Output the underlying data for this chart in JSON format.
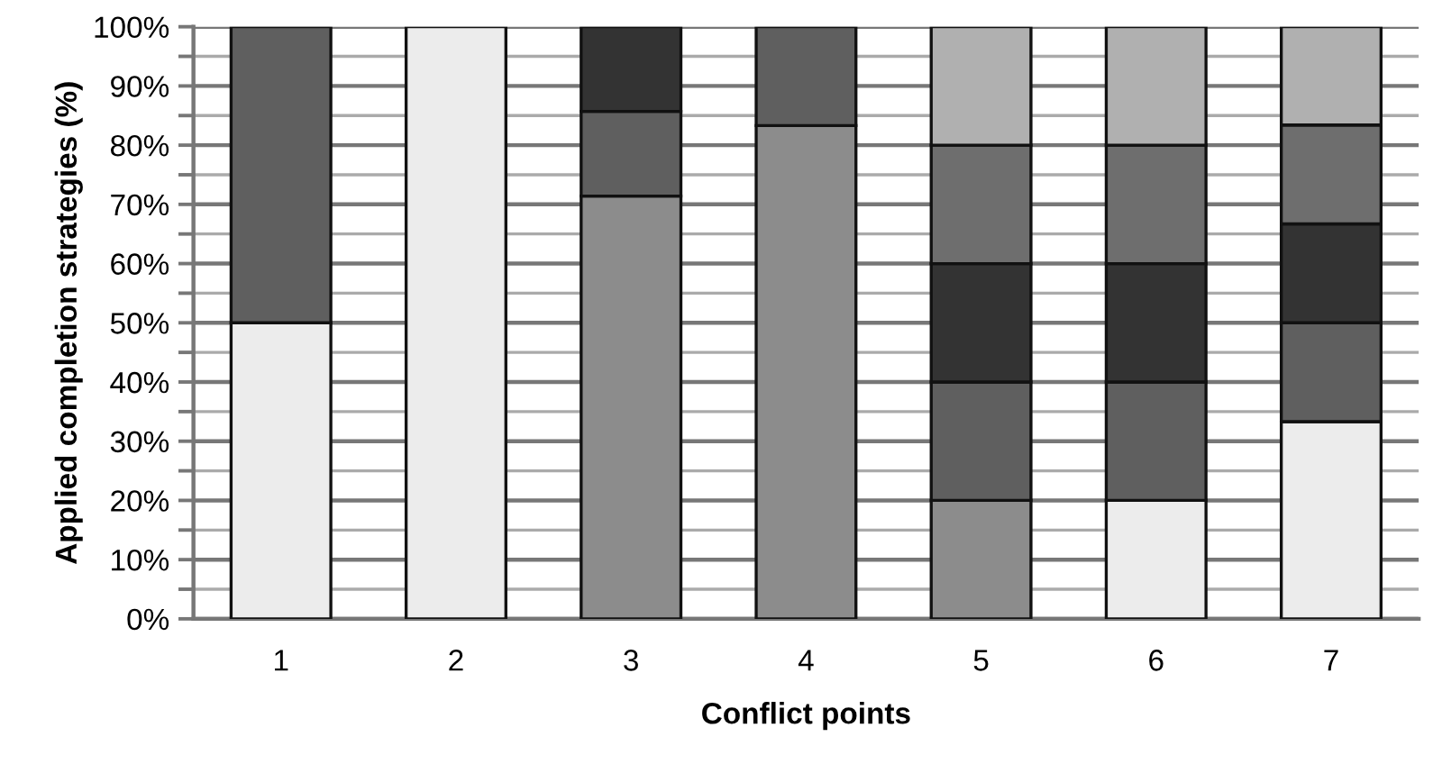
{
  "chart_data": {
    "type": "bar",
    "stacked": true,
    "xlabel": "Conflict points",
    "ylabel": "Applied completion strategies (%)",
    "categories": [
      "1",
      "2",
      "3",
      "4",
      "5",
      "6",
      "7"
    ],
    "series": [
      {
        "color": "#ececec",
        "values": [
          50,
          100,
          null,
          null,
          null,
          20,
          33.3
        ]
      },
      {
        "color": "#8c8c8c",
        "values": [
          null,
          null,
          71.4,
          83.3,
          20,
          null,
          null
        ]
      },
      {
        "color": "#5f5f5f",
        "values": [
          50,
          null,
          14.3,
          16.7,
          20,
          20,
          16.7
        ]
      },
      {
        "color": "#333333",
        "values": [
          null,
          null,
          14.3,
          null,
          20,
          20,
          16.7
        ]
      },
      {
        "color": "#6e6e6e",
        "values": [
          null,
          null,
          null,
          null,
          20,
          20,
          16.7
        ]
      },
      {
        "color": "#b0b0b0",
        "values": [
          null,
          null,
          null,
          null,
          20,
          20,
          16.6
        ]
      }
    ],
    "ylim": [
      0,
      100
    ],
    "yticks": [
      {
        "value": 0,
        "label": "0%"
      },
      {
        "value": 5,
        "label": null
      },
      {
        "value": 10,
        "label": "10%"
      },
      {
        "value": 15,
        "label": null
      },
      {
        "value": 20,
        "label": "20%"
      },
      {
        "value": 25,
        "label": null
      },
      {
        "value": 30,
        "label": "30%"
      },
      {
        "value": 35,
        "label": null
      },
      {
        "value": 40,
        "label": "40%"
      },
      {
        "value": 45,
        "label": null
      },
      {
        "value": 50,
        "label": "50%"
      },
      {
        "value": 55,
        "label": null
      },
      {
        "value": 60,
        "label": "60%"
      },
      {
        "value": 65,
        "label": null
      },
      {
        "value": 70,
        "label": "70%"
      },
      {
        "value": 75,
        "label": null
      },
      {
        "value": 80,
        "label": "80%"
      },
      {
        "value": 85,
        "label": null
      },
      {
        "value": 90,
        "label": "90%"
      },
      {
        "value": 95,
        "label": null
      },
      {
        "value": 100,
        "label": "100%"
      }
    ],
    "grid": "y"
  }
}
